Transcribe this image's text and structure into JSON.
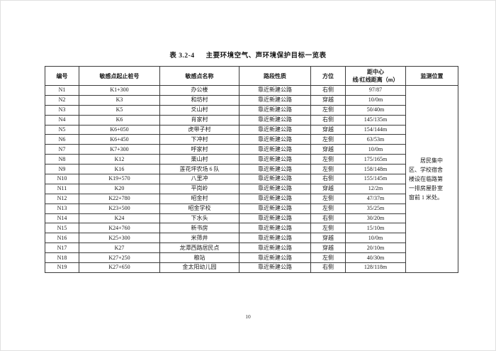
{
  "caption": {
    "label": "表 3.2-4",
    "title": "主要环境空气、声环境保护目标一览表"
  },
  "table": {
    "columns": [
      "编号",
      "敏感点起止桩号",
      "敏感点名称",
      "路段性质",
      "方位",
      "距中心\n线/红线距离（m）",
      "监测位置"
    ],
    "rows": [
      [
        "N1",
        "K1+300",
        "办公楼",
        "靠近新建公路",
        "右侧",
        "97/87"
      ],
      [
        "N2",
        "K3",
        "和坊村",
        "靠近新建公路",
        "穿越",
        "10/0m"
      ],
      [
        "N3",
        "K5",
        "爻山村",
        "靠近新建公路",
        "左侧",
        "50/40m"
      ],
      [
        "N4",
        "K6",
        "肖家村",
        "靠近新建公路",
        "右侧",
        "145/135m"
      ],
      [
        "N5",
        "K6+050",
        "虎带子村",
        "靠近新建公路",
        "穿越",
        "154/144m"
      ],
      [
        "N6",
        "K6+450",
        "下冲村",
        "靠近新建公路",
        "左侧",
        "63/53m"
      ],
      [
        "N7",
        "K7+300",
        "呼家村",
        "靠近新建公路",
        "穿越",
        "10/0m"
      ],
      [
        "N8",
        "K12",
        "栗山村",
        "靠近新建公路",
        "左侧",
        "175/165m"
      ],
      [
        "N9",
        "K16",
        "莲花坪农场 6 队",
        "靠近新建公路",
        "左侧",
        "158/148m"
      ],
      [
        "N10",
        "K19+570",
        "八里冲",
        "靠近新建公路",
        "右侧",
        "155/145m"
      ],
      [
        "N11",
        "K20",
        "平岗岭",
        "靠近新建公路",
        "穿越",
        "12/2m"
      ],
      [
        "N12",
        "K22+780",
        "昭金村",
        "靠近新建公路",
        "左侧",
        "47/37m"
      ],
      [
        "N13",
        "K23+500",
        "昭金学校",
        "靠近新建公路",
        "左侧",
        "35/25m"
      ],
      [
        "N14",
        "K24",
        "下水头",
        "靠近新建公路",
        "右侧",
        "30/20m"
      ],
      [
        "N15",
        "K24+760",
        "新书房",
        "靠近新建公路",
        "左侧",
        "15/10m"
      ],
      [
        "N16",
        "K25+300",
        "米筛井",
        "靠近新建公路",
        "穿越",
        "10/0m"
      ],
      [
        "N17",
        "K27",
        "龙潭西路居民点",
        "靠近新建公路",
        "穿越",
        "20/10m"
      ],
      [
        "N18",
        "K27+250",
        "粮站",
        "靠近新建公路",
        "左侧",
        "40/30m"
      ],
      [
        "N19",
        "K27+650",
        "金太阳幼儿园",
        "靠近新建公路",
        "右侧",
        "128/118m"
      ]
    ],
    "monitor_note": "居民集中\n区、学校宿舍\n楼设在临路第\n一排房屋卧室\n窗前 1 米处。"
  },
  "footer": {
    "page_number": "10"
  }
}
